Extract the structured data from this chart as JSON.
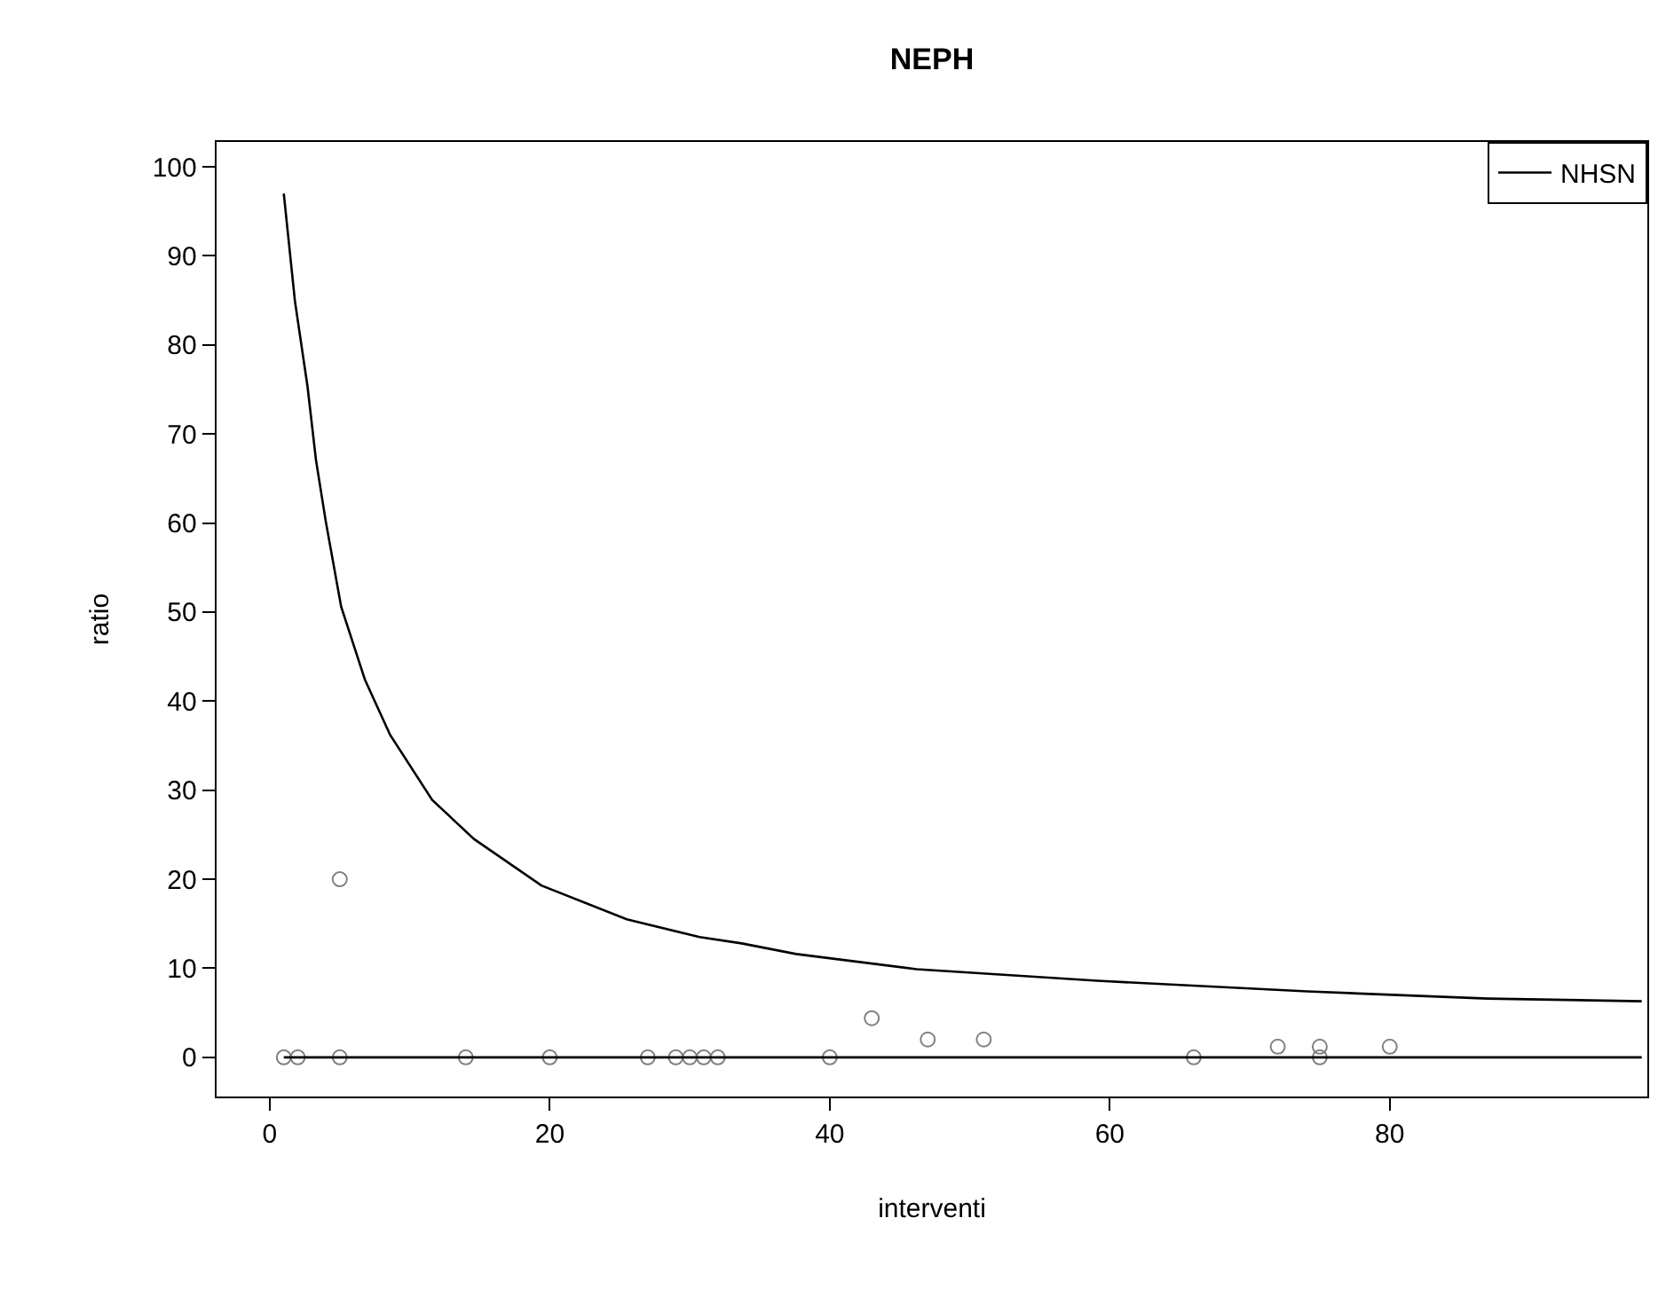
{
  "chart_data": {
    "type": "scatter",
    "title": "NEPH",
    "xlabel": "interventi",
    "ylabel": "ratio",
    "xlim": [
      -3.8,
      98.4
    ],
    "ylim": [
      -4.4,
      102.8
    ],
    "xticks": [
      0,
      20,
      40,
      60,
      80
    ],
    "yticks": [
      0,
      10,
      20,
      30,
      40,
      50,
      60,
      70,
      80,
      90,
      100
    ],
    "legend": "top right",
    "series": [
      {
        "color": "#808080",
        "marker": "circle",
        "x": [
          1,
          2,
          5,
          5,
          14,
          20,
          27,
          29,
          30,
          31,
          32,
          40,
          43,
          47,
          51,
          66,
          72,
          75,
          75,
          80
        ],
        "values": [
          0,
          0,
          20,
          0,
          0,
          0,
          0,
          0,
          0,
          0,
          0,
          0,
          4.4,
          2,
          2,
          0,
          1.2,
          1.2,
          0,
          1.2
        ]
      },
      {
        "type": "line",
        "name": "NHSN",
        "color": "#000000",
        "line_style": "solid",
        "x": [
          1,
          1.8,
          2.7,
          3.3,
          4,
          5.1,
          6.8,
          8.6,
          11.6,
          14.6,
          19.4,
          25.5,
          30.7,
          33.7,
          37.6,
          46.2,
          59.1,
          74.1,
          87,
          98
        ],
        "values": [
          97,
          84.9,
          75.3,
          67.1,
          60.2,
          50.6,
          42.4,
          36.2,
          28.9,
          24.5,
          19.3,
          15.5,
          13.5,
          12.8,
          11.6,
          9.9,
          8.6,
          7.4,
          6.6,
          6.3
        ]
      },
      {
        "type": "line",
        "color": "#000000",
        "line_style": "solid",
        "x": [
          1,
          98
        ],
        "values": [
          0,
          0
        ]
      }
    ]
  }
}
